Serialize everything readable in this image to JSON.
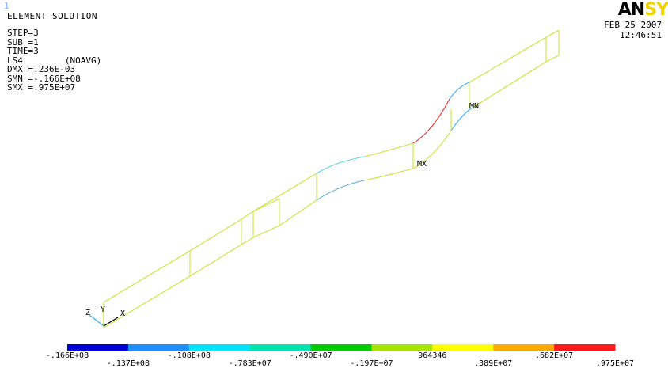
{
  "window_number": "1",
  "header": {
    "title": "ELEMENT SOLUTION",
    "lines": [
      "STEP=3",
      "SUB =1",
      "TIME=3",
      "LS4        (NOAVG)",
      "DMX =.236E-03",
      "SMN =-.166E+08",
      "SMX =.975E+07"
    ]
  },
  "logo": {
    "text_main": "AN",
    "text_cut": "SY"
  },
  "timestamp": {
    "date": "FEB 25 2007",
    "time": "12:46:51"
  },
  "labels": {
    "max": "MX",
    "min": "MN"
  },
  "triad": {
    "z": "Z",
    "y": "Y",
    "x": "X"
  },
  "legend": {
    "colors": [
      "#0000d8",
      "#1e90ff",
      "#00e5ff",
      "#00e6b0",
      "#00cc00",
      "#a6e600",
      "#ffff00",
      "#ffaa00",
      "#ff1a1a"
    ],
    "values": [
      ".166E+08",
      "-.137E+08",
      "-.108E+08",
      "-.783E+07",
      "-.490E+07",
      "-.197E+07",
      "964346",
      ".389E+07",
      ".682E+07",
      ".975E+07"
    ],
    "first_prefix": "-."
  }
}
